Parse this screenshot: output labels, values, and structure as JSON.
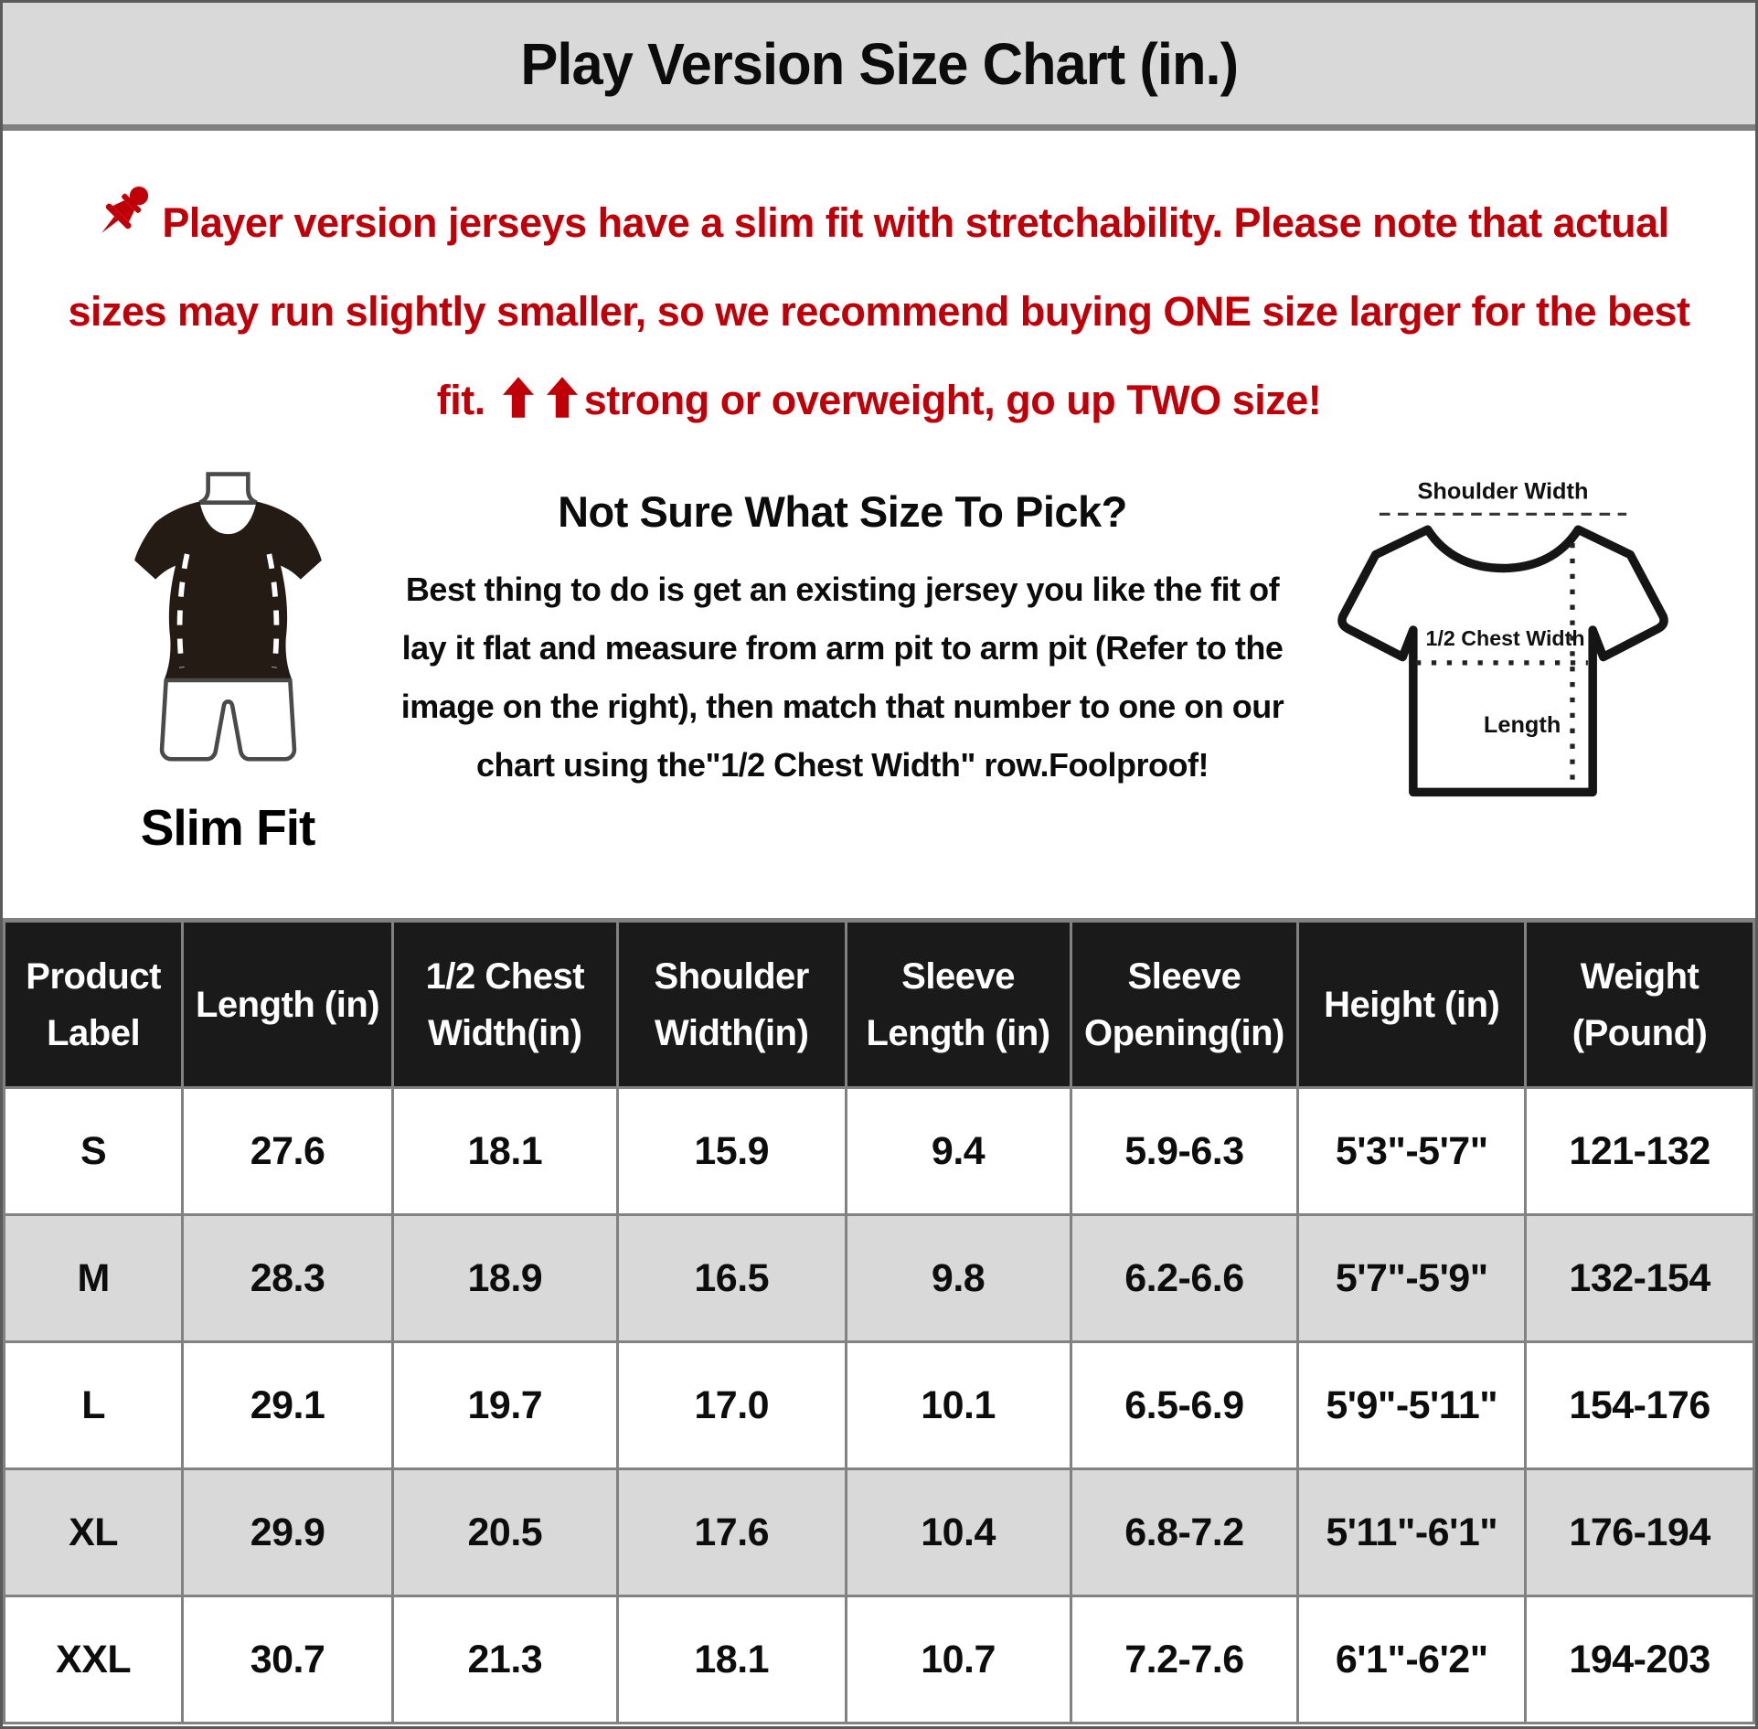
{
  "header": {
    "title": "Play Version Size Chart (in.)"
  },
  "warning": {
    "text_before_arrows": "Player version jerseys have a slim fit with stretchability. Please note that actual sizes may run slightly smaller, so we recommend buying ONE size larger for the best fit.",
    "text_after_arrows": "strong or overweight, go up TWO size!",
    "accent_color": "#c00008"
  },
  "fit_illustration": {
    "caption": "Slim Fit"
  },
  "size_help": {
    "title": "Not Sure What Size To Pick?",
    "body": "Best thing to do is get an existing jersey you like the fit of lay it flat and measure from arm pit to arm pit (Refer to the image on the right), then match that number to one on our chart using the\"1/2 Chest Width\" row.Foolproof!"
  },
  "measure_diagram": {
    "shoulder_label": "Shoulder Width",
    "chest_label": "1/2 Chest Width",
    "length_label": "Length"
  },
  "chart_data": {
    "type": "table",
    "columns": [
      "Product Label",
      "Length (in)",
      "1/2 Chest Width(in)",
      "Shoulder Width(in)",
      "Sleeve Length (in)",
      "Sleeve Opening(in)",
      "Height (in)",
      "Weight (Pound)"
    ],
    "rows": [
      [
        "S",
        "27.6",
        "18.1",
        "15.9",
        "9.4",
        "5.9-6.3",
        "5'3\"-5'7\"",
        "121-132"
      ],
      [
        "M",
        "28.3",
        "18.9",
        "16.5",
        "9.8",
        "6.2-6.6",
        "5'7\"-5'9\"",
        "132-154"
      ],
      [
        "L",
        "29.1",
        "19.7",
        "17.0",
        "10.1",
        "6.5-6.9",
        "5'9\"-5'11\"",
        "154-176"
      ],
      [
        "XL",
        "29.9",
        "20.5",
        "17.6",
        "10.4",
        "6.8-7.2",
        "5'11\"-6'1\"",
        "176-194"
      ],
      [
        "XXL",
        "30.7",
        "21.3",
        "18.1",
        "10.7",
        "7.2-7.6",
        "6'1\"-6'2\"",
        "194-203"
      ]
    ]
  },
  "colors": {
    "accent_red": "#c00008",
    "title_bar_bg": "#d9d9d9",
    "table_header_bg": "#1a1a1a",
    "table_border": "#828282",
    "alt_row_bg": "#d9d9d9"
  }
}
